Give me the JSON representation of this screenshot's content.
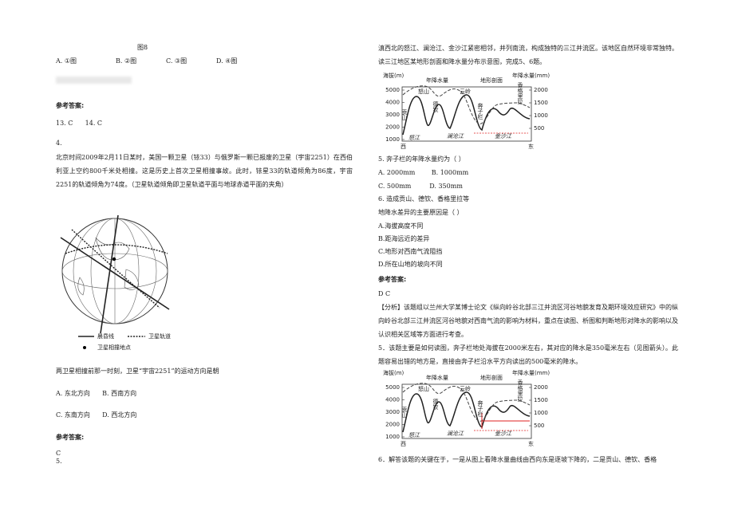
{
  "left": {
    "fig_caption": "图8",
    "q_options": [
      "A. ①图",
      "B. ②图",
      "C. ③图",
      "D. ④图"
    ],
    "answer_heading_1": "参考答案:",
    "answer_1": "13. C      14. C",
    "q4_number": "4.",
    "q4_text": "北京时间2009年2月11日某时，美国一颗卫星（铱33）与俄罗斯一颗已报废的卫星（宇宙2251）在西伯利亚上空约800千米处相撞。这是历史上首次卫星相撞事故。此时，铱星33的轨道倾角为86度，宇宙2251的轨道倾角为74度。（卫星轨道倾角即卫星轨道平面与地球赤道平面的夹角）",
    "legend": {
      "terminator": "晨昏线",
      "orbit": "卫星轨道",
      "collision": "卫星相撞地点"
    },
    "q4_question": "两卫星相撞前那一时刻，卫星“宇宙2251”的运动方向是朝",
    "q4_options_row1": "A. 东北方向      B. 西南方向",
    "q4_options_row2": "C. 东南方向      D. 西北方向",
    "answer_heading_2": "参考答案:",
    "answer_2": "C",
    "q5_number": "5."
  },
  "right": {
    "intro": "滇西北的怒江、澜沧江、金沙江紧密相邻，并列南流，构成独特的三江并流区。该地区自然环境非常独特。读三江地区某地形剖面和降水量分布示意图，完成5、6题。",
    "q5": "5. 奔子栏的年降水量约为（   ）",
    "q5_row1": "A. 2000mm        B. 1000mm",
    "q5_row2": "C. 500mm         D. 350mm",
    "q6_line1": "6. 造成贡山、德钦、香格里拉等",
    "q6_line2": "地降水差异的主要原因是（   ）",
    "q6_options": [
      "A.海拔高度不同",
      "B.距海远近的差异",
      "C.地形对西南气流阻挡",
      "D.所在山地的坡向不同"
    ],
    "answer_heading": "参考答案:",
    "answer": "D C",
    "analysis": "【分析】该题组以兰州大学某博士论文《纵向岭谷北部三江并流区河谷地貌发育及期环境效应研究》中的纵向岭谷北部三江并流区河谷地貌对西南气流的影响为材料，重点在读图、析图和判断地形对降水的影响以及认识相关区域等方面进行考查。",
    "explain5": "5．该题主要是如何读图，奔子栏地处海拔在2000米左右，其对应的降水是350毫米左右（见图箭头）。此题容易出错的地方是，直接由奔子栏沿水平方向读出的500毫米的降水。",
    "explain6": "6．解答该题的关键在于，一是从图上看降水量曲线由西向东是逐坡下降的，二是贡山、德钦、香格"
  },
  "figures": [
    {
      "left_axis_title": "海拔(m)",
      "right_axis_title": "年降水量(mm)",
      "elevation_ticks": [
        5000,
        4000,
        3000,
        2000,
        1000
      ],
      "precip_ticks": [
        2000,
        1500,
        1000,
        500
      ],
      "precip_label": "年降水量",
      "profile_label": "地形剖面",
      "places": [
        "贡山",
        "怒山",
        "德钦",
        "云岭",
        "奔子栏",
        "香格里拉"
      ],
      "rivers": [
        "怒江",
        "澜沧江",
        "金沙江"
      ],
      "west": "西",
      "east": "东"
    },
    {
      "left_axis_title": "海拔(m)",
      "right_axis_title": "年降水量(mm)",
      "elevation_ticks": [
        5000,
        4000,
        3000,
        2000,
        1000
      ],
      "precip_ticks": [
        2000,
        1500,
        1000,
        500
      ],
      "precip_label": "年降水量",
      "profile_label": "地形剖面",
      "places": [
        "贡山",
        "怒山",
        "德钦",
        "云岭",
        "奔子栏",
        "香格里拉"
      ],
      "rivers": [
        "怒江",
        "澜沧江",
        "金沙江"
      ],
      "west": "西",
      "east": "东"
    }
  ]
}
